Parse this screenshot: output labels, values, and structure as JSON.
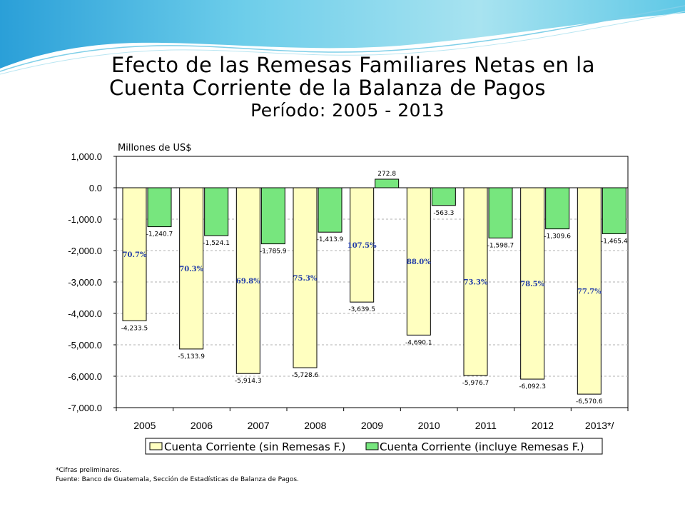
{
  "titles": {
    "line1": "Efecto de las Remesas Familiares Netas en la",
    "line2": "Cuenta Corriente de la Balanza de Pagos",
    "line3": "Período: 2005 - 2013"
  },
  "colors": {
    "bar_sin": "#FFFFC0",
    "bar_incl": "#77E67E",
    "pct_text": "#1F3AA8",
    "grid": "#B0B0B0"
  },
  "chart_data": {
    "type": "bar",
    "ylabel": "Millones de US$",
    "ylim": [
      -7000,
      1000
    ],
    "yticks": [
      "1,000.0",
      "0.0",
      "-1,000.0",
      "-2,000.0",
      "-3,000.0",
      "-4,000.0",
      "-5,000.0",
      "-6,000.0",
      "-7,000.0"
    ],
    "ytick_values": [
      1000,
      0,
      -1000,
      -2000,
      -3000,
      -4000,
      -5000,
      -6000,
      -7000
    ],
    "categories": [
      "2005",
      "2006",
      "2007",
      "2008",
      "2009",
      "2010",
      "2011",
      "2012",
      "2013*/"
    ],
    "series": [
      {
        "name": "Cuenta Corriente (sin Remesas F.)",
        "values": [
          -4233.5,
          -5133.9,
          -5914.3,
          -5728.6,
          -3639.5,
          -4690.1,
          -5976.7,
          -6092.3,
          -6570.6
        ],
        "labels": [
          "-4,233.5",
          "-5,133.9",
          "-5,914.3",
          "-5,728.6",
          "-3,639.5",
          "-4,690.1",
          "-5,976.7",
          "-6,092.3",
          "-6,570.6"
        ]
      },
      {
        "name": "Cuenta Corriente (incluye Remesas F.)",
        "values": [
          -1240.7,
          -1524.1,
          -1785.9,
          -1413.9,
          272.8,
          -563.3,
          -1598.7,
          -1309.6,
          -1465.4
        ],
        "labels": [
          "-1,240.7",
          "-1,524.1",
          "-1,785.9",
          "-1,413.9",
          "272.8",
          "-563.3",
          "-1,598.7",
          "-1,309.6",
          "-1,465.4"
        ]
      }
    ],
    "percentages": [
      "70.7%",
      "70.3%",
      "69.8%",
      "75.3%",
      "107.5%",
      "88.0%",
      "73.3%",
      "78.5%",
      "77.7%"
    ],
    "grid": true,
    "legend_position": "bottom"
  },
  "notes": {
    "line1": "*Cifras preliminares.",
    "line2": "Fuente: Banco de Guatemala, Sección de Estadísticas de Balanza de Pagos."
  }
}
